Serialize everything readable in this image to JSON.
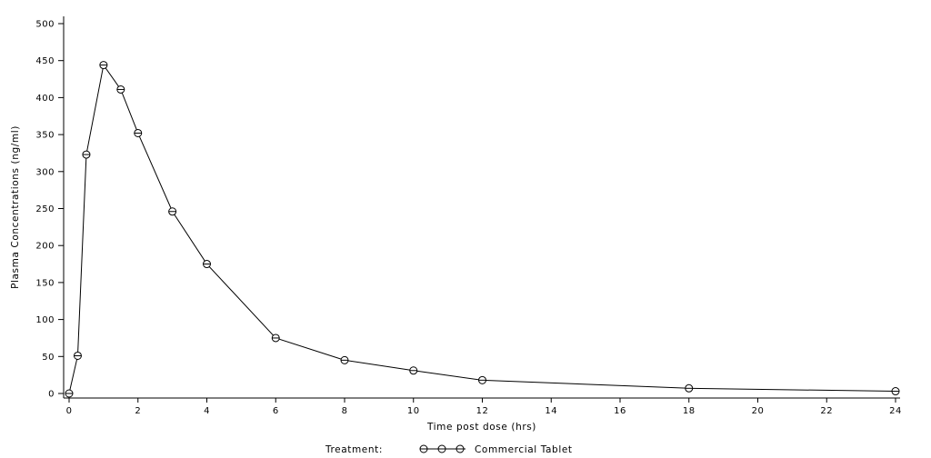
{
  "chart_data": {
    "type": "line",
    "xlabel": "Time post dose (hrs)",
    "ylabel": "Plasma Concentrations (ng/ml)",
    "xlim": [
      0,
      24
    ],
    "ylim": [
      0,
      500
    ],
    "x_ticks": [
      0,
      2,
      4,
      6,
      8,
      10,
      12,
      14,
      16,
      18,
      20,
      22,
      24
    ],
    "y_ticks": [
      0,
      50,
      100,
      150,
      200,
      250,
      300,
      350,
      400,
      450,
      500
    ],
    "grid": false,
    "legend_position": "bottom-center",
    "legend_title": "Treatment:",
    "series": [
      {
        "name": "Commercial Tablet",
        "marker": "open-circle",
        "x": [
          0,
          0.25,
          0.5,
          1,
          1.5,
          2,
          3,
          4,
          6,
          8,
          10,
          12,
          18,
          24
        ],
        "y": [
          0,
          51,
          323,
          444,
          411,
          352,
          246,
          175,
          75,
          45,
          31,
          18,
          7,
          3
        ]
      }
    ]
  }
}
